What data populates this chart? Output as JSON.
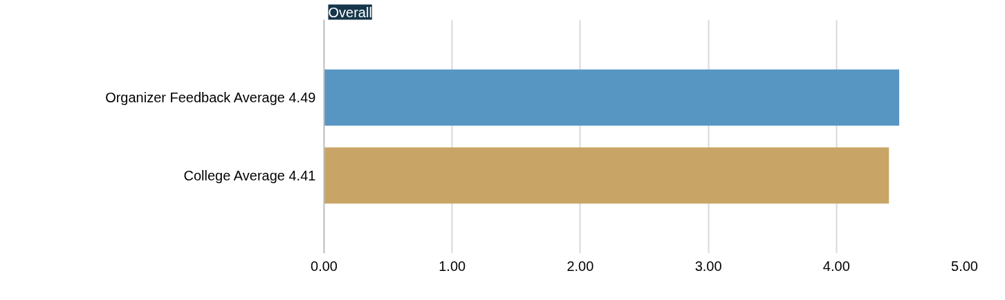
{
  "chart_data": {
    "type": "bar",
    "orientation": "horizontal",
    "title": "Overall",
    "categories": [
      "Organizer Feedback Average 4.49",
      "College Average 4.41"
    ],
    "values": [
      4.49,
      4.41
    ],
    "colors": [
      "#5795c2",
      "#c8a566"
    ],
    "xlim": [
      0,
      5
    ],
    "xticks": [
      {
        "value": 0,
        "label": "0.00"
      },
      {
        "value": 1,
        "label": "1.00"
      },
      {
        "value": 2,
        "label": "2.00"
      },
      {
        "value": 3,
        "label": "3.00"
      },
      {
        "value": 4,
        "label": "4.00"
      },
      {
        "value": 5,
        "label": "5.00"
      }
    ],
    "grid": "x"
  }
}
